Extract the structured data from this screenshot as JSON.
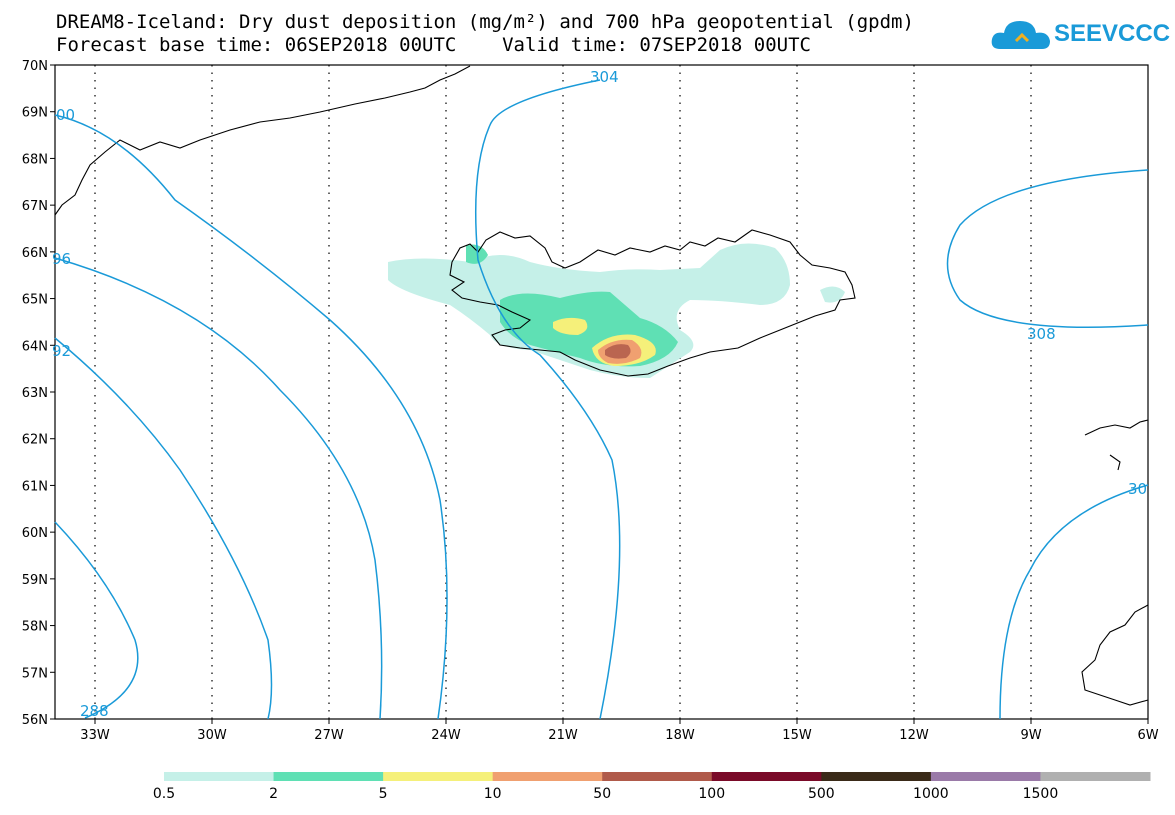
{
  "header": {
    "title_line1": "DREAM8-Iceland: Dry dust deposition (mg/m²) and 700 hPa geopotential (gpdm)",
    "title_line2": "Forecast base time: 06SEP2018 00UTC    Valid time: 07SEP2018 00UTC"
  },
  "logo": {
    "text": "SEEVCCC",
    "icon": "cloud-icon",
    "color": "#1a9ad8"
  },
  "map": {
    "lat_labels": [
      "70N",
      "69N",
      "68N",
      "67N",
      "66N",
      "65N",
      "64N",
      "63N",
      "62N",
      "61N",
      "60N",
      "59N",
      "58N",
      "57N",
      "56N"
    ],
    "lon_labels": [
      "33W",
      "30W",
      "27W",
      "24W",
      "21W",
      "18W",
      "15W",
      "12W",
      "9W",
      "6W"
    ],
    "contour_color": "#1a9ad8",
    "contour_labels": [
      "288",
      "92",
      "96",
      "00",
      "304",
      "308",
      "30"
    ]
  },
  "colorbar": {
    "colors": [
      "#c5f0e8",
      "#5fe0b4",
      "#f5f07a",
      "#f0a070",
      "#b05a4a",
      "#7a0a28",
      "#3a2a18",
      "#9a7aa8",
      "#b0b0b0"
    ],
    "labels": [
      "0.5",
      "2",
      "5",
      "10",
      "50",
      "100",
      "500",
      "1000",
      "1500"
    ]
  }
}
